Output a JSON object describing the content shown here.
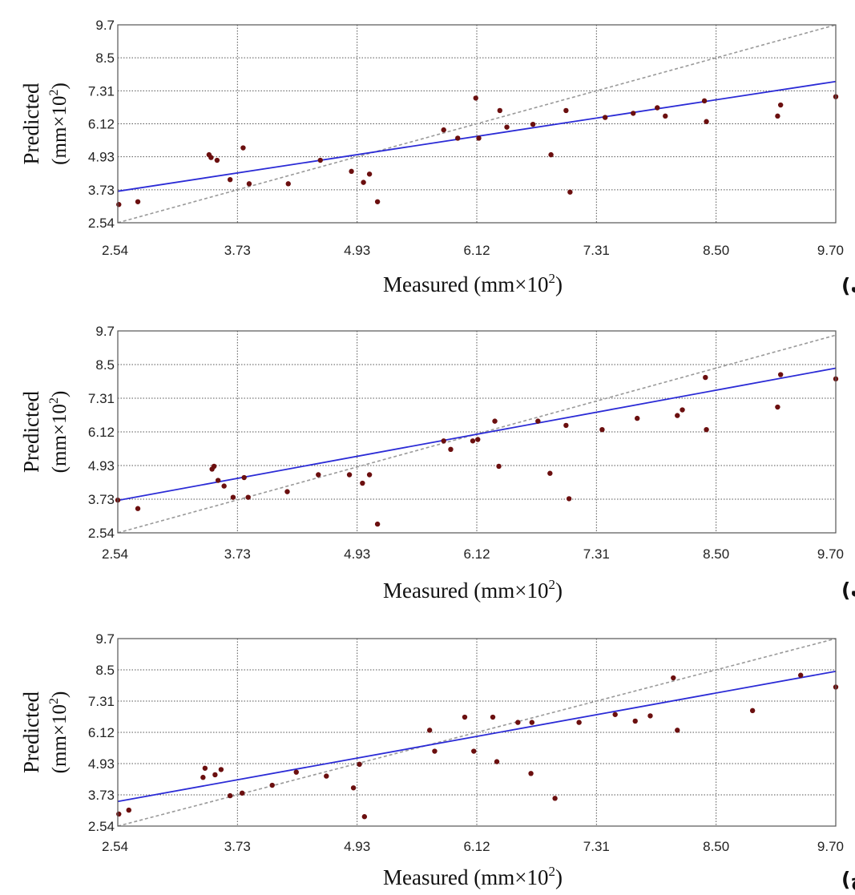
{
  "figure": {
    "colors": {
      "frame": "#555555",
      "grid": "#555555",
      "fit_line": "#2b2bd6",
      "identity_line": "#999999",
      "points": "#6b0f0f"
    }
  },
  "chart_data": [
    {
      "type": "scatter",
      "panel_tag": "(الف)",
      "xlabel": "Measured (mm×10",
      "xlabel_sup": "2",
      "xlabel_close": ")",
      "ylabel_1": "Predicted",
      "ylabel_2": "(mm×10",
      "ylabel_sup": "2",
      "ylabel_close": ")",
      "xlim": [
        2.54,
        9.7
      ],
      "ylim": [
        2.54,
        9.7
      ],
      "x_ticks": [
        "2.54",
        "3.73",
        "4.93",
        "6.12",
        "7.31",
        "8.50",
        "9.70"
      ],
      "y_ticks": [
        "2.54",
        "3.73",
        "4.93",
        "6.12",
        "7.31",
        "8.5",
        "9.7"
      ],
      "grid": true,
      "fit_line": [
        [
          2.54,
          3.68
        ],
        [
          9.7,
          7.65
        ]
      ],
      "identity_line": [
        [
          2.54,
          2.54
        ],
        [
          9.7,
          9.7
        ]
      ],
      "points": [
        [
          2.55,
          3.2
        ],
        [
          2.74,
          3.3
        ],
        [
          3.45,
          5.0
        ],
        [
          3.47,
          4.9
        ],
        [
          3.53,
          4.8
        ],
        [
          3.66,
          4.1
        ],
        [
          3.79,
          5.25
        ],
        [
          3.85,
          3.95
        ],
        [
          4.24,
          3.95
        ],
        [
          4.56,
          4.8
        ],
        [
          4.87,
          4.4
        ],
        [
          4.99,
          4.0
        ],
        [
          5.05,
          4.3
        ],
        [
          5.13,
          3.3
        ],
        [
          5.79,
          5.9
        ],
        [
          5.93,
          5.6
        ],
        [
          6.11,
          7.05
        ],
        [
          6.14,
          5.6
        ],
        [
          6.35,
          6.6
        ],
        [
          6.42,
          6.0
        ],
        [
          6.68,
          6.1
        ],
        [
          6.86,
          5.0
        ],
        [
          7.01,
          6.6
        ],
        [
          7.05,
          3.65
        ],
        [
          7.4,
          6.35
        ],
        [
          7.68,
          6.5
        ],
        [
          7.92,
          6.7
        ],
        [
          8.0,
          6.4
        ],
        [
          8.39,
          6.95
        ],
        [
          8.41,
          6.2
        ],
        [
          9.12,
          6.4
        ],
        [
          9.15,
          6.8
        ],
        [
          9.7,
          7.1
        ]
      ]
    },
    {
      "type": "scatter",
      "panel_tag": "(ب)",
      "xlabel": "Measured (mm×10",
      "xlabel_sup": "2",
      "xlabel_close": ")",
      "ylabel_1": "Predicted",
      "ylabel_2": "(mm×10",
      "ylabel_sup": "2",
      "ylabel_close": ")",
      "xlim": [
        2.54,
        9.7
      ],
      "ylim": [
        2.54,
        9.7
      ],
      "x_ticks": [
        "2.54",
        "3.73",
        "4.93",
        "6.12",
        "7.31",
        "8.50",
        "9.70"
      ],
      "y_ticks": [
        "2.54",
        "3.73",
        "4.93",
        "6.12",
        "7.31",
        "8.5",
        "9.7"
      ],
      "grid": true,
      "fit_line": [
        [
          2.54,
          3.69
        ],
        [
          9.7,
          8.38
        ]
      ],
      "identity_line": [
        [
          2.54,
          2.54
        ],
        [
          9.7,
          9.55
        ]
      ],
      "points": [
        [
          2.54,
          3.7
        ],
        [
          2.74,
          3.4
        ],
        [
          3.48,
          4.8
        ],
        [
          3.5,
          4.9
        ],
        [
          3.54,
          4.4
        ],
        [
          3.6,
          4.2
        ],
        [
          3.69,
          3.8
        ],
        [
          3.8,
          4.5
        ],
        [
          3.84,
          3.8
        ],
        [
          4.23,
          4.0
        ],
        [
          4.54,
          4.6
        ],
        [
          4.85,
          4.6
        ],
        [
          4.98,
          4.3
        ],
        [
          5.05,
          4.6
        ],
        [
          5.13,
          2.85
        ],
        [
          5.79,
          5.8
        ],
        [
          5.86,
          5.5
        ],
        [
          6.08,
          5.8
        ],
        [
          6.13,
          5.85
        ],
        [
          6.3,
          6.5
        ],
        [
          6.34,
          4.9
        ],
        [
          6.73,
          6.5
        ],
        [
          6.85,
          4.65
        ],
        [
          7.01,
          6.35
        ],
        [
          7.04,
          3.75
        ],
        [
          7.37,
          6.2
        ],
        [
          7.72,
          6.6
        ],
        [
          8.12,
          6.7
        ],
        [
          8.17,
          6.9
        ],
        [
          8.4,
          8.05
        ],
        [
          8.41,
          6.2
        ],
        [
          9.12,
          7.0
        ],
        [
          9.15,
          8.15
        ],
        [
          9.7,
          8.0
        ]
      ]
    },
    {
      "type": "scatter",
      "panel_tag": "(ج)",
      "xlabel": "Measured (mm×10",
      "xlabel_sup": "2",
      "xlabel_close": ")",
      "ylabel_1": "Predicted",
      "ylabel_2": "(mm×10",
      "ylabel_sup": "2",
      "ylabel_close": ")",
      "xlim": [
        2.54,
        9.7
      ],
      "ylim": [
        2.54,
        9.7
      ],
      "x_ticks": [
        "2.54",
        "3.73",
        "4.93",
        "6.12",
        "7.31",
        "8.50",
        "9.70"
      ],
      "y_ticks": [
        "2.54",
        "3.73",
        "4.93",
        "6.12",
        "7.31",
        "8.5",
        "9.7"
      ],
      "grid": true,
      "fit_line": [
        [
          2.54,
          3.48
        ],
        [
          9.7,
          8.45
        ]
      ],
      "identity_line": [
        [
          2.54,
          2.54
        ],
        [
          9.7,
          9.7
        ]
      ],
      "points": [
        [
          2.55,
          3.0
        ],
        [
          2.65,
          3.15
        ],
        [
          3.39,
          4.4
        ],
        [
          3.41,
          4.75
        ],
        [
          3.51,
          4.5
        ],
        [
          3.57,
          4.7
        ],
        [
          3.66,
          3.7
        ],
        [
          3.78,
          3.8
        ],
        [
          4.08,
          4.1
        ],
        [
          4.32,
          4.6
        ],
        [
          4.62,
          4.45
        ],
        [
          4.89,
          4.0
        ],
        [
          4.95,
          4.9
        ],
        [
          5.0,
          2.9
        ],
        [
          5.65,
          6.2
        ],
        [
          5.7,
          5.4
        ],
        [
          6.0,
          6.7
        ],
        [
          6.09,
          5.4
        ],
        [
          6.28,
          6.7
        ],
        [
          6.32,
          5.0
        ],
        [
          6.53,
          6.5
        ],
        [
          6.66,
          4.55
        ],
        [
          6.67,
          6.5
        ],
        [
          6.9,
          3.6
        ],
        [
          7.14,
          6.5
        ],
        [
          7.5,
          6.8
        ],
        [
          7.7,
          6.55
        ],
        [
          7.85,
          6.75
        ],
        [
          8.08,
          8.2
        ],
        [
          8.12,
          6.2
        ],
        [
          8.87,
          6.95
        ],
        [
          9.35,
          8.3
        ],
        [
          9.7,
          7.85
        ]
      ]
    }
  ]
}
